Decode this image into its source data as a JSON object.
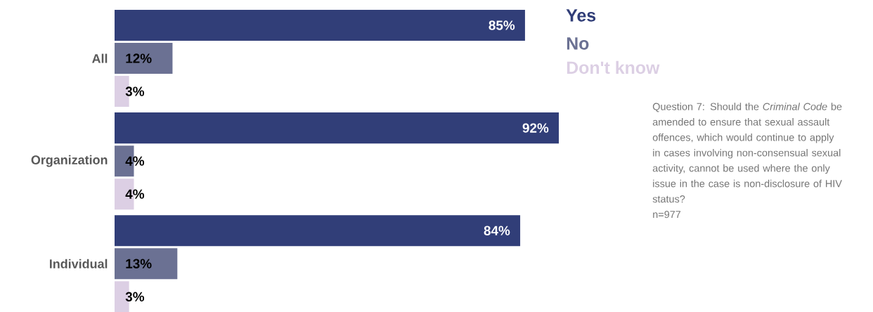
{
  "chart_data": {
    "type": "bar",
    "orientation": "horizontal",
    "categories": [
      "All",
      "Organization",
      "Individual"
    ],
    "series": [
      {
        "name": "Yes",
        "color": "#313e78",
        "values": [
          85,
          92,
          84
        ],
        "value_labels": [
          "85%",
          "92%",
          "84%"
        ]
      },
      {
        "name": "No",
        "color": "#6b7193",
        "values": [
          12,
          4,
          13
        ],
        "value_labels": [
          "12%",
          "4%",
          "13%"
        ]
      },
      {
        "name": "Don't know",
        "color": "#dccfe4",
        "values": [
          3,
          4,
          3
        ],
        "value_labels": [
          "3%",
          "4%",
          "3%"
        ]
      }
    ],
    "legend": "top right",
    "tick_labels": "y",
    "annotations": [
      "Question 7: Should the *Criminal Code* be amended to ensure that sexual assault offences, which would continue to apply in cases involving non-consensual sexual activity, cannot be used where the only issue in the case is non-disclosure of HIV status?",
      "n=977"
    ]
  }
}
